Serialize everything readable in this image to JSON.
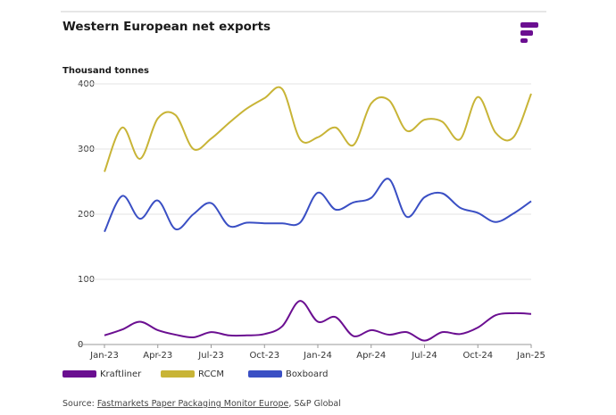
{
  "chart_data": {
    "type": "line",
    "title": "Western European net exports",
    "y_label": "Thousand tonnes",
    "categories": [
      "Jan-23",
      null,
      null,
      "Apr-23",
      null,
      null,
      "Jul-23",
      null,
      null,
      "Oct-23",
      null,
      null,
      "Jan-24",
      null,
      null,
      "Apr-24",
      null,
      null,
      "Jul-24",
      null,
      null,
      "Oct-24",
      null,
      null,
      "Jan-25"
    ],
    "series": [
      {
        "name": "Kraftliner",
        "color": "#6b0f91",
        "values": [
          14,
          23,
          35,
          22,
          15,
          11,
          19,
          14,
          14,
          16,
          28,
          67,
          35,
          42,
          13,
          22,
          15,
          19,
          6,
          19,
          16,
          26,
          45,
          48,
          47
        ]
      },
      {
        "name": "RCCM",
        "color": "#c8b436",
        "values": [
          265,
          333,
          285,
          347,
          352,
          300,
          316,
          340,
          362,
          378,
          392,
          315,
          318,
          333,
          306,
          370,
          375,
          328,
          345,
          342,
          315,
          380,
          325,
          318,
          385
        ]
      },
      {
        "name": "Boxboard",
        "color": "#3a4fc4",
        "values": [
          173,
          228,
          193,
          221,
          177,
          200,
          217,
          182,
          187,
          186,
          186,
          187,
          233,
          207,
          218,
          225,
          254,
          196,
          226,
          232,
          210,
          202,
          188,
          201,
          220
        ]
      }
    ],
    "ylim": [
      0,
      400
    ],
    "yticks": [
      0,
      100,
      200,
      300,
      400
    ],
    "grid": true,
    "source": {
      "prefix": "Source: ",
      "link": "Fastmarkets Paper Packaging Monitor Europe",
      "suffix": ", S&P Global"
    }
  }
}
